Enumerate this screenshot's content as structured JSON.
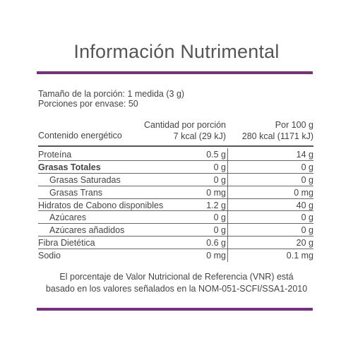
{
  "title": "Información Nutrimental",
  "colors": {
    "accent": "#7b2d7f"
  },
  "serving": {
    "size": "Tamaño de la porción: 1 medida (3 g)",
    "servings": "Porciones por envase: 50"
  },
  "header": {
    "energy_label": "Contenido energético",
    "col1_title": "Cantidad por porción",
    "col1_value": "7 kcal (29 kJ)",
    "col2_title": "Por 100 g",
    "col2_value": "280 kcal (1171 kJ)"
  },
  "rows": [
    {
      "name": "Proteína",
      "per_serving": "0.5 g",
      "per_100g": "14 g",
      "indent": false,
      "bold": false
    },
    {
      "name": "Grasas Totales",
      "per_serving": "0 g",
      "per_100g": "0 g",
      "indent": false,
      "bold": true
    },
    {
      "name": "Grasas Saturadas",
      "per_serving": "0 g",
      "per_100g": "0 g",
      "indent": true,
      "bold": false
    },
    {
      "name": "Grasas Trans",
      "per_serving": "0 mg",
      "per_100g": "0 mg",
      "indent": true,
      "bold": false
    },
    {
      "name": "Hidratos de Cabono disponibles",
      "per_serving": "1.2 g",
      "per_100g": "40 g",
      "indent": false,
      "bold": false
    },
    {
      "name": "Azúcares",
      "per_serving": "0 g",
      "per_100g": "0 g",
      "indent": true,
      "bold": false
    },
    {
      "name": "Azúcares añadidos",
      "per_serving": "0 g",
      "per_100g": "0 g",
      "indent": true,
      "bold": false
    },
    {
      "name": "Fibra Dietética",
      "per_serving": "0.6 g",
      "per_100g": "20 g",
      "indent": false,
      "bold": false
    },
    {
      "name": "Sodio",
      "per_serving": "0 mg",
      "per_100g": "0.1 mg",
      "indent": false,
      "bold": false
    }
  ],
  "footnote": {
    "line1": "El porcentaje de Valor Nutricional de Referencia (VNR) está",
    "line2": "basado en los valores señalados en la NOM-051-SCFI/SSA1-2010"
  }
}
